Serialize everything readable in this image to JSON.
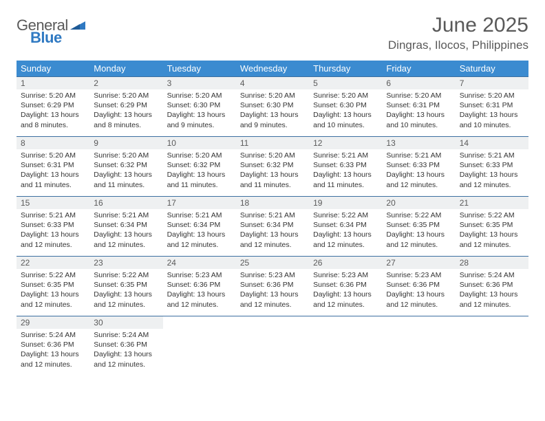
{
  "logo": {
    "word1": "General",
    "word2": "Blue"
  },
  "colors": {
    "header_bg": "#3b8bd0",
    "header_text": "#ffffff",
    "week_border": "#3b6fa0",
    "daynum_bg": "#eef0f1",
    "text_gray": "#595959",
    "detail_text": "#333333",
    "logo_blue": "#2f79c2",
    "page_bg": "#ffffff"
  },
  "fonts": {
    "month_title_size": 30,
    "location_size": 17,
    "day_header_size": 13,
    "daynum_size": 12,
    "detail_size": 10.5
  },
  "title": "June 2025",
  "location": "Dingras, Ilocos, Philippines",
  "day_headers": [
    "Sunday",
    "Monday",
    "Tuesday",
    "Wednesday",
    "Thursday",
    "Friday",
    "Saturday"
  ],
  "weeks": [
    [
      {
        "n": "1",
        "sr": "Sunrise: 5:20 AM",
        "ss": "Sunset: 6:29 PM",
        "d1": "Daylight: 13 hours",
        "d2": "and 8 minutes."
      },
      {
        "n": "2",
        "sr": "Sunrise: 5:20 AM",
        "ss": "Sunset: 6:29 PM",
        "d1": "Daylight: 13 hours",
        "d2": "and 8 minutes."
      },
      {
        "n": "3",
        "sr": "Sunrise: 5:20 AM",
        "ss": "Sunset: 6:30 PM",
        "d1": "Daylight: 13 hours",
        "d2": "and 9 minutes."
      },
      {
        "n": "4",
        "sr": "Sunrise: 5:20 AM",
        "ss": "Sunset: 6:30 PM",
        "d1": "Daylight: 13 hours",
        "d2": "and 9 minutes."
      },
      {
        "n": "5",
        "sr": "Sunrise: 5:20 AM",
        "ss": "Sunset: 6:30 PM",
        "d1": "Daylight: 13 hours",
        "d2": "and 10 minutes."
      },
      {
        "n": "6",
        "sr": "Sunrise: 5:20 AM",
        "ss": "Sunset: 6:31 PM",
        "d1": "Daylight: 13 hours",
        "d2": "and 10 minutes."
      },
      {
        "n": "7",
        "sr": "Sunrise: 5:20 AM",
        "ss": "Sunset: 6:31 PM",
        "d1": "Daylight: 13 hours",
        "d2": "and 10 minutes."
      }
    ],
    [
      {
        "n": "8",
        "sr": "Sunrise: 5:20 AM",
        "ss": "Sunset: 6:31 PM",
        "d1": "Daylight: 13 hours",
        "d2": "and 11 minutes."
      },
      {
        "n": "9",
        "sr": "Sunrise: 5:20 AM",
        "ss": "Sunset: 6:32 PM",
        "d1": "Daylight: 13 hours",
        "d2": "and 11 minutes."
      },
      {
        "n": "10",
        "sr": "Sunrise: 5:20 AM",
        "ss": "Sunset: 6:32 PM",
        "d1": "Daylight: 13 hours",
        "d2": "and 11 minutes."
      },
      {
        "n": "11",
        "sr": "Sunrise: 5:20 AM",
        "ss": "Sunset: 6:32 PM",
        "d1": "Daylight: 13 hours",
        "d2": "and 11 minutes."
      },
      {
        "n": "12",
        "sr": "Sunrise: 5:21 AM",
        "ss": "Sunset: 6:33 PM",
        "d1": "Daylight: 13 hours",
        "d2": "and 11 minutes."
      },
      {
        "n": "13",
        "sr": "Sunrise: 5:21 AM",
        "ss": "Sunset: 6:33 PM",
        "d1": "Daylight: 13 hours",
        "d2": "and 12 minutes."
      },
      {
        "n": "14",
        "sr": "Sunrise: 5:21 AM",
        "ss": "Sunset: 6:33 PM",
        "d1": "Daylight: 13 hours",
        "d2": "and 12 minutes."
      }
    ],
    [
      {
        "n": "15",
        "sr": "Sunrise: 5:21 AM",
        "ss": "Sunset: 6:33 PM",
        "d1": "Daylight: 13 hours",
        "d2": "and 12 minutes."
      },
      {
        "n": "16",
        "sr": "Sunrise: 5:21 AM",
        "ss": "Sunset: 6:34 PM",
        "d1": "Daylight: 13 hours",
        "d2": "and 12 minutes."
      },
      {
        "n": "17",
        "sr": "Sunrise: 5:21 AM",
        "ss": "Sunset: 6:34 PM",
        "d1": "Daylight: 13 hours",
        "d2": "and 12 minutes."
      },
      {
        "n": "18",
        "sr": "Sunrise: 5:21 AM",
        "ss": "Sunset: 6:34 PM",
        "d1": "Daylight: 13 hours",
        "d2": "and 12 minutes."
      },
      {
        "n": "19",
        "sr": "Sunrise: 5:22 AM",
        "ss": "Sunset: 6:34 PM",
        "d1": "Daylight: 13 hours",
        "d2": "and 12 minutes."
      },
      {
        "n": "20",
        "sr": "Sunrise: 5:22 AM",
        "ss": "Sunset: 6:35 PM",
        "d1": "Daylight: 13 hours",
        "d2": "and 12 minutes."
      },
      {
        "n": "21",
        "sr": "Sunrise: 5:22 AM",
        "ss": "Sunset: 6:35 PM",
        "d1": "Daylight: 13 hours",
        "d2": "and 12 minutes."
      }
    ],
    [
      {
        "n": "22",
        "sr": "Sunrise: 5:22 AM",
        "ss": "Sunset: 6:35 PM",
        "d1": "Daylight: 13 hours",
        "d2": "and 12 minutes."
      },
      {
        "n": "23",
        "sr": "Sunrise: 5:22 AM",
        "ss": "Sunset: 6:35 PM",
        "d1": "Daylight: 13 hours",
        "d2": "and 12 minutes."
      },
      {
        "n": "24",
        "sr": "Sunrise: 5:23 AM",
        "ss": "Sunset: 6:36 PM",
        "d1": "Daylight: 13 hours",
        "d2": "and 12 minutes."
      },
      {
        "n": "25",
        "sr": "Sunrise: 5:23 AM",
        "ss": "Sunset: 6:36 PM",
        "d1": "Daylight: 13 hours",
        "d2": "and 12 minutes."
      },
      {
        "n": "26",
        "sr": "Sunrise: 5:23 AM",
        "ss": "Sunset: 6:36 PM",
        "d1": "Daylight: 13 hours",
        "d2": "and 12 minutes."
      },
      {
        "n": "27",
        "sr": "Sunrise: 5:23 AM",
        "ss": "Sunset: 6:36 PM",
        "d1": "Daylight: 13 hours",
        "d2": "and 12 minutes."
      },
      {
        "n": "28",
        "sr": "Sunrise: 5:24 AM",
        "ss": "Sunset: 6:36 PM",
        "d1": "Daylight: 13 hours",
        "d2": "and 12 minutes."
      }
    ],
    [
      {
        "n": "29",
        "sr": "Sunrise: 5:24 AM",
        "ss": "Sunset: 6:36 PM",
        "d1": "Daylight: 13 hours",
        "d2": "and 12 minutes."
      },
      {
        "n": "30",
        "sr": "Sunrise: 5:24 AM",
        "ss": "Sunset: 6:36 PM",
        "d1": "Daylight: 13 hours",
        "d2": "and 12 minutes."
      },
      {
        "empty": true
      },
      {
        "empty": true
      },
      {
        "empty": true
      },
      {
        "empty": true
      },
      {
        "empty": true
      }
    ]
  ]
}
